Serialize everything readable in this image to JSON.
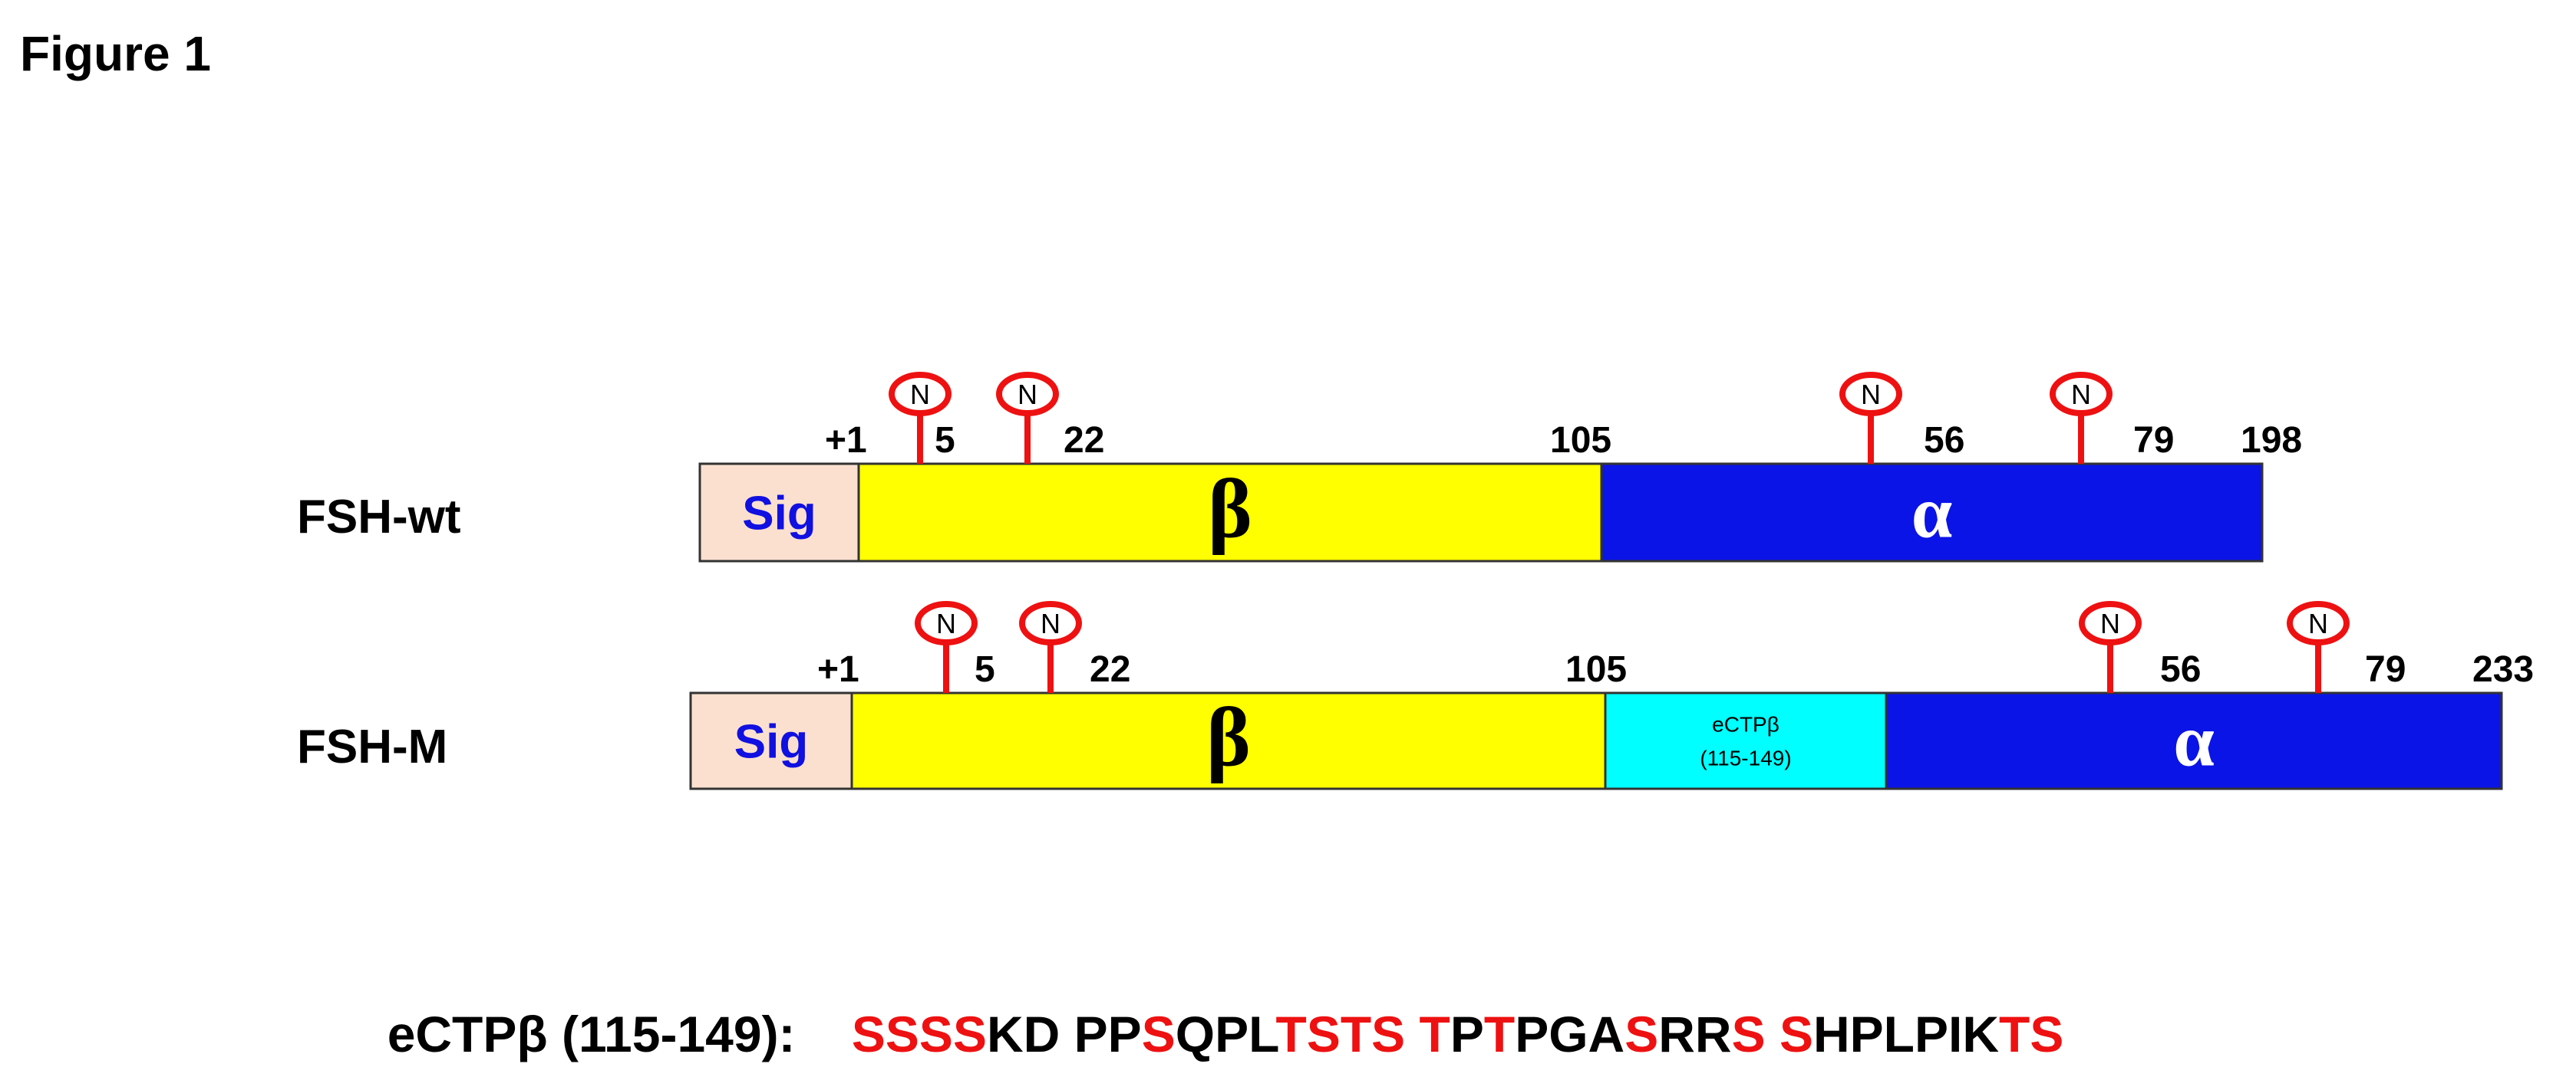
{
  "figure_label": "Figure 1",
  "constructs": [
    {
      "name": "FSH-wt",
      "domains": [
        {
          "label": "Sig"
        },
        {
          "label": "β"
        },
        {
          "label": "α"
        }
      ],
      "positions": [
        "+1",
        "5",
        "22",
        "105",
        "56",
        "79",
        "198"
      ],
      "glycosylation_sites": [
        "N",
        "N",
        "N",
        "N"
      ]
    },
    {
      "name": "FSH-M",
      "domains": [
        {
          "label": "Sig"
        },
        {
          "label": "β"
        },
        {
          "label": "eCTPβ",
          "sublabel": "(115-149)"
        },
        {
          "label": "α"
        }
      ],
      "positions": [
        "+1",
        "5",
        "22",
        "105",
        "56",
        "79",
        "233"
      ],
      "glycosylation_sites": [
        "N",
        "N",
        "N",
        "N"
      ]
    }
  ],
  "sequence": {
    "label": "eCTPβ (115-149):",
    "segments": [
      {
        "text": "SSSS",
        "highlight": true
      },
      {
        "text": "KD PP",
        "highlight": false
      },
      {
        "text": "S",
        "highlight": true
      },
      {
        "text": "QPL",
        "highlight": false
      },
      {
        "text": "TSTS T",
        "highlight": true
      },
      {
        "text": "P",
        "highlight": false
      },
      {
        "text": "T",
        "highlight": true
      },
      {
        "text": "PGA",
        "highlight": false
      },
      {
        "text": "S",
        "highlight": true
      },
      {
        "text": "RR",
        "highlight": false
      },
      {
        "text": "S S",
        "highlight": true
      },
      {
        "text": "HPLPIK",
        "highlight": false
      },
      {
        "text": "TS",
        "highlight": true
      }
    ]
  }
}
